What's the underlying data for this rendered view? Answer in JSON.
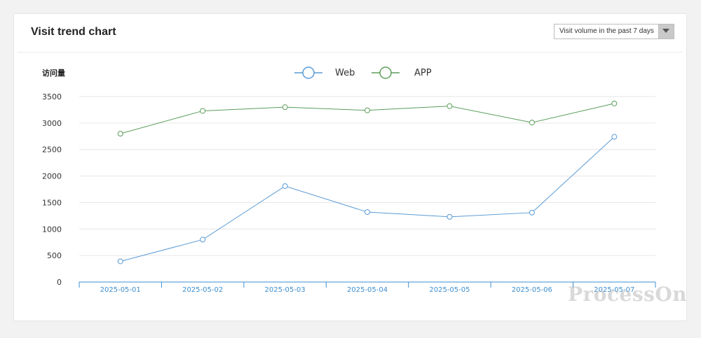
{
  "card": {
    "title": "Visit trend chart",
    "range_select": {
      "value": "Visit volume in the past 7 days"
    }
  },
  "watermark": "ProcessOn",
  "chart_data": {
    "type": "line",
    "title": "",
    "ylabel": "访问量",
    "xlabel": "",
    "categories": [
      "2025-05-01",
      "2025-05-02",
      "2025-05-03",
      "2025-05-04",
      "2025-05-05",
      "2025-05-06",
      "2025-05-07"
    ],
    "y_ticks": [
      0,
      500,
      1000,
      1500,
      2000,
      2500,
      3000,
      3500
    ],
    "ylim": [
      0,
      3500
    ],
    "grid": true,
    "legend": "top-center",
    "series": [
      {
        "name": "Web",
        "color": "#5a9bd5",
        "values": [
          390,
          800,
          1810,
          1320,
          1230,
          1310,
          2740
        ]
      },
      {
        "name": "APP",
        "color": "#5b9e5b",
        "values": [
          2800,
          3230,
          3300,
          3240,
          3320,
          3010,
          3370
        ]
      }
    ]
  }
}
